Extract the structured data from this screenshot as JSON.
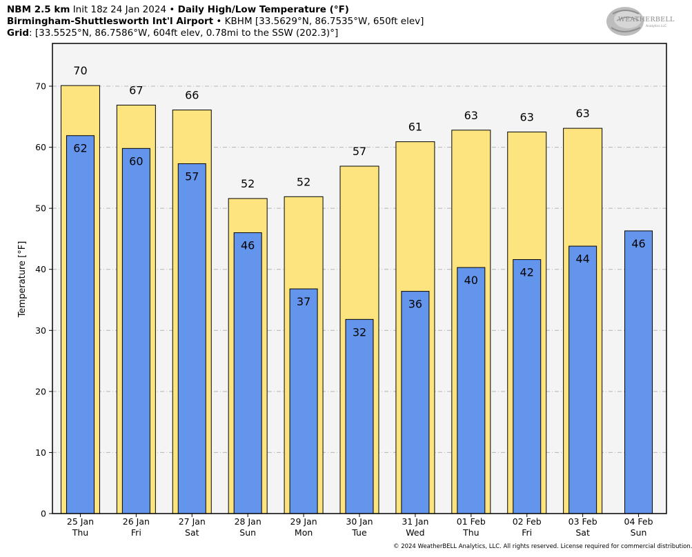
{
  "header": {
    "line1_bold_a": "NBM 2.5 km",
    "line1_normal": "Init 18z 24 Jan 2024",
    "line1_sep": "•",
    "line1_bold_b": "Daily High/Low Temperature (°F)",
    "line2_bold": "Birmingham-Shuttlesworth Int'l Airport",
    "line2_sep": "•",
    "line2_normal": "KBHM [33.5629°N, 86.7535°W, 650ft elev]",
    "line3_bold": "Grid",
    "line3_normal": ": [33.5525°N, 86.7586°W, 604ft elev, 0.78mi to the SSW (202.3)°]"
  },
  "logo": {
    "text": "WEATHERBELL",
    "sub": "Analytics LLC"
  },
  "footer": "© 2024 WeatherBELL Analytics, LLC. All rights reserved. License required for commercial distribution.",
  "chart_data": {
    "type": "bar",
    "ylabel": "Temperature [°F]",
    "ylim": [
      0,
      77
    ],
    "yticks": [
      0,
      10,
      20,
      30,
      40,
      50,
      60,
      70
    ],
    "grid": true,
    "categories": [
      {
        "date": "25 Jan",
        "day": "Thu"
      },
      {
        "date": "26 Jan",
        "day": "Fri"
      },
      {
        "date": "27 Jan",
        "day": "Sat"
      },
      {
        "date": "28 Jan",
        "day": "Sun"
      },
      {
        "date": "29 Jan",
        "day": "Mon"
      },
      {
        "date": "30 Jan",
        "day": "Tue"
      },
      {
        "date": "31 Jan",
        "day": "Wed"
      },
      {
        "date": "01 Feb",
        "day": "Thu"
      },
      {
        "date": "02 Feb",
        "day": "Fri"
      },
      {
        "date": "03 Feb",
        "day": "Sat"
      },
      {
        "date": "04 Feb",
        "day": "Sun"
      }
    ],
    "series": [
      {
        "name": "High",
        "color": "#fde47f",
        "values": [
          70.1,
          66.9,
          66.1,
          51.6,
          51.9,
          56.9,
          60.9,
          62.8,
          62.5,
          63.1,
          null
        ],
        "labels": [
          "70",
          "67",
          "66",
          "52",
          "52",
          "57",
          "61",
          "63",
          "63",
          "63",
          null
        ]
      },
      {
        "name": "Low",
        "color": "#6495ed",
        "values": [
          61.9,
          59.8,
          57.3,
          46.0,
          36.8,
          31.8,
          36.4,
          40.3,
          41.6,
          43.8,
          46.3
        ],
        "labels": [
          "62",
          "60",
          "57",
          "46",
          "37",
          "32",
          "36",
          "40",
          "42",
          "44",
          "46"
        ]
      }
    ],
    "plot_background": "#f4f4f4"
  }
}
